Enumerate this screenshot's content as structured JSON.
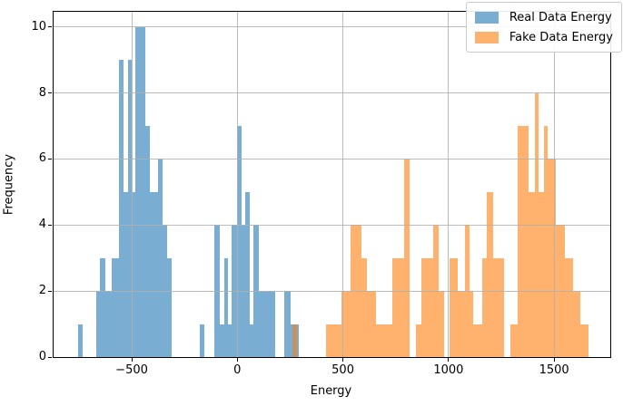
{
  "chart_data": {
    "type": "bar",
    "subtype": "histogram",
    "title": "",
    "xlabel": "Energy",
    "ylabel": "Frequency",
    "xlim": [
      -870,
      1766
    ],
    "ylim": [
      0,
      10.46
    ],
    "grid": true,
    "xticks": [
      -500,
      0,
      500,
      1000,
      1500
    ],
    "yticks": [
      0,
      2,
      4,
      6,
      8,
      10
    ],
    "xtick_labels": [
      "−500",
      "0",
      "500",
      "1000",
      "1500"
    ],
    "ytick_labels": [
      "0",
      "2",
      "4",
      "6",
      "8",
      "10"
    ],
    "legend": {
      "position": "upper right",
      "entries": [
        "Real Data Energy",
        "Fake Data Energy"
      ]
    },
    "colors": {
      "real": "31,119,180",
      "fake": "255,127,14",
      "alpha": 0.6,
      "grid": "#b0b0b0",
      "legend_border": "#cccccc",
      "spine": "#000000",
      "background": "#ffffff"
    },
    "series": [
      {
        "name": "Real Data Energy",
        "bars": [
          [
            -756,
            -732,
            1
          ],
          [
            -669,
            -650,
            2
          ],
          [
            -650,
            -627,
            3
          ],
          [
            -627,
            -593,
            2
          ],
          [
            -593,
            -561,
            3
          ],
          [
            -561,
            -539,
            9
          ],
          [
            -539,
            -519,
            5
          ],
          [
            -519,
            -500,
            9
          ],
          [
            -500,
            -481,
            5
          ],
          [
            -481,
            -436,
            10
          ],
          [
            -436,
            -413,
            7
          ],
          [
            -413,
            -374,
            5
          ],
          [
            -374,
            -356,
            6
          ],
          [
            -356,
            -331,
            4
          ],
          [
            -331,
            -313,
            3
          ],
          [
            -176,
            -154,
            1
          ],
          [
            -111,
            -83,
            4
          ],
          [
            -83,
            -61,
            1
          ],
          [
            -61,
            -44,
            3
          ],
          [
            -44,
            -26,
            1
          ],
          [
            -26,
            -1,
            4
          ],
          [
            -1,
            20,
            7
          ],
          [
            20,
            39,
            4
          ],
          [
            39,
            57,
            5
          ],
          [
            57,
            78,
            1
          ],
          [
            78,
            103,
            4
          ],
          [
            103,
            181,
            2
          ],
          [
            224,
            253,
            2
          ],
          [
            253,
            293,
            1
          ]
        ]
      },
      {
        "name": "Fake Data Energy",
        "bars": [
          [
            260,
            284,
            1
          ],
          [
            421,
            492,
            1
          ],
          [
            492,
            536,
            2
          ],
          [
            536,
            588,
            4
          ],
          [
            588,
            613,
            3
          ],
          [
            613,
            657,
            2
          ],
          [
            657,
            734,
            1
          ],
          [
            734,
            792,
            3
          ],
          [
            792,
            817,
            6
          ],
          [
            846,
            871,
            1
          ],
          [
            871,
            929,
            3
          ],
          [
            929,
            953,
            4
          ],
          [
            953,
            978,
            2
          ],
          [
            1007,
            1043,
            3
          ],
          [
            1043,
            1079,
            2
          ],
          [
            1079,
            1098,
            4
          ],
          [
            1098,
            1117,
            2
          ],
          [
            1117,
            1160,
            1
          ],
          [
            1160,
            1181,
            3
          ],
          [
            1181,
            1210,
            5
          ],
          [
            1210,
            1264,
            3
          ],
          [
            1293,
            1328,
            1
          ],
          [
            1328,
            1379,
            7
          ],
          [
            1379,
            1410,
            5
          ],
          [
            1410,
            1428,
            8
          ],
          [
            1428,
            1450,
            5
          ],
          [
            1450,
            1470,
            7
          ],
          [
            1470,
            1510,
            6
          ],
          [
            1510,
            1550,
            4
          ],
          [
            1550,
            1589,
            3
          ],
          [
            1589,
            1625,
            2
          ],
          [
            1625,
            1663,
            1
          ]
        ]
      }
    ]
  }
}
